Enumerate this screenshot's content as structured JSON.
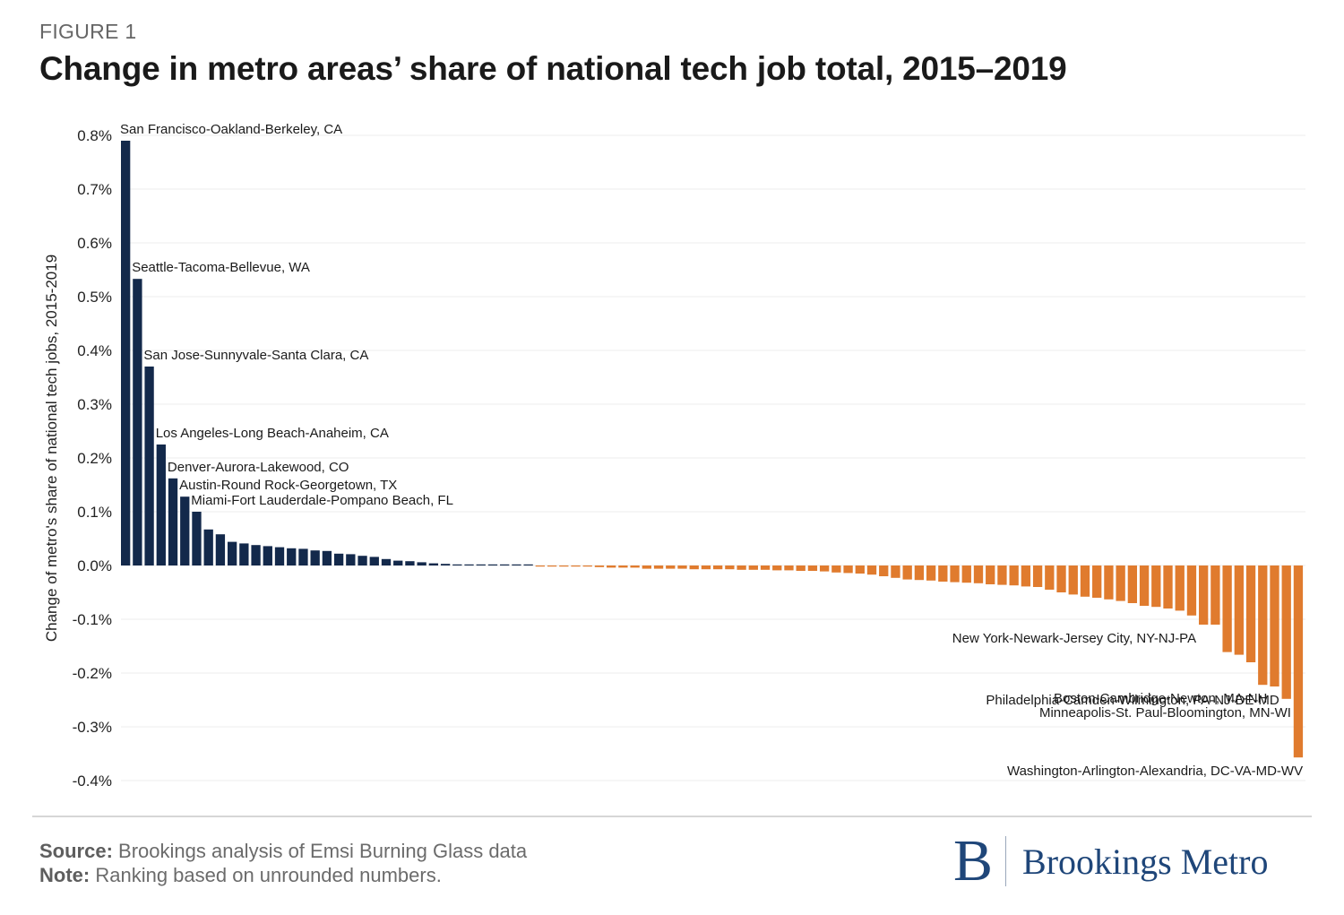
{
  "header": {
    "figure_label": "FIGURE 1",
    "title": "Change in metro areas’ share of national tech job total, 2015–2019"
  },
  "chart_data": {
    "type": "bar",
    "title": "Change in metro areas’ share of national tech job total, 2015–2019",
    "xlabel": "",
    "ylabel": "Change of metro's share of national tech jobs, 2015-2019",
    "ylim": [
      -0.4,
      0.8
    ],
    "y_unit": "%",
    "yticks": [
      0.8,
      0.7,
      0.6,
      0.5,
      0.4,
      0.3,
      0.2,
      0.1,
      0.0,
      -0.1,
      -0.2,
      -0.3,
      -0.4
    ],
    "ytick_labels": [
      "0.8%",
      "0.7%",
      "0.6%",
      "0.5%",
      "0.4%",
      "0.3%",
      "0.2%",
      "0.1%",
      "0.0%",
      "-0.1%",
      "-0.2%",
      "-0.3%",
      "-0.4%"
    ],
    "grid": true,
    "legend": "none",
    "colors": {
      "positive": "#13294b",
      "negative": "#e07b2e"
    },
    "n_metros": 100,
    "values": [
      0.79,
      0.533,
      0.37,
      0.225,
      0.162,
      0.128,
      0.1,
      0.067,
      0.058,
      0.044,
      0.041,
      0.038,
      0.036,
      0.034,
      0.032,
      0.031,
      0.028,
      0.027,
      0.022,
      0.021,
      0.018,
      0.016,
      0.012,
      0.009,
      0.008,
      0.006,
      0.004,
      0.003,
      0.002,
      0.002,
      0.001,
      0.001,
      0.001,
      0.001,
      0.001,
      -0.001,
      -0.001,
      -0.001,
      -0.001,
      -0.001,
      -0.003,
      -0.004,
      -0.004,
      -0.004,
      -0.006,
      -0.006,
      -0.006,
      -0.006,
      -0.007,
      -0.007,
      -0.007,
      -0.007,
      -0.008,
      -0.008,
      -0.008,
      -0.009,
      -0.009,
      -0.01,
      -0.01,
      -0.011,
      -0.013,
      -0.014,
      -0.015,
      -0.017,
      -0.02,
      -0.023,
      -0.026,
      -0.027,
      -0.028,
      -0.03,
      -0.031,
      -0.032,
      -0.033,
      -0.035,
      -0.036,
      -0.037,
      -0.039,
      -0.04,
      -0.045,
      -0.05,
      -0.054,
      -0.058,
      -0.06,
      -0.063,
      -0.066,
      -0.07,
      -0.075,
      -0.077,
      -0.08,
      -0.084,
      -0.093,
      -0.11,
      -0.11,
      -0.161,
      -0.166,
      -0.18,
      -0.222,
      -0.225,
      -0.248,
      -0.357
    ],
    "annotations": [
      {
        "index": 0,
        "label": "San Francisco-Oakland-Berkeley, CA",
        "value": 0.79
      },
      {
        "index": 1,
        "label": "Seattle-Tacoma-Bellevue, WA",
        "value": 0.533
      },
      {
        "index": 2,
        "label": "San Jose-Sunnyvale-Santa Clara, CA",
        "value": 0.37
      },
      {
        "index": 3,
        "label": "Los Angeles-Long Beach-Anaheim, CA",
        "value": 0.225
      },
      {
        "index": 4,
        "label": "Denver-Aurora-Lakewood, CO",
        "value": 0.162
      },
      {
        "index": 5,
        "label": "Austin-Round Rock-Georgetown, TX",
        "value": 0.128
      },
      {
        "index": 6,
        "label": "Miami-Fort Lauderdale-Pompano Beach, FL",
        "value": 0.1
      },
      {
        "index": 90,
        "label": "New York-Newark-Jersey City, NY-NJ-PA",
        "value": -0.11
      },
      {
        "index": 96,
        "label": "Boston-Cambridge-Newton, MA-NH",
        "value": -0.222
      },
      {
        "index": 97,
        "label": "Philadelphia-Camden-Wilmington, PA-NJ-DE-MD",
        "value": -0.225
      },
      {
        "index": 98,
        "label": "Minneapolis-St. Paul-Bloomington, MN-WI",
        "value": -0.248
      },
      {
        "index": 99,
        "label": "Washington-Arlington-Alexandria, DC-VA-MD-WV",
        "value": -0.357
      }
    ]
  },
  "footer": {
    "source_label": "Source:",
    "source_text": " Brookings analysis of Emsi Burning Glass data",
    "note_label": "Note:",
    "note_text": " Ranking based on unrounded numbers.",
    "logo_mark": "B",
    "logo_text": "Brookings Metro"
  }
}
